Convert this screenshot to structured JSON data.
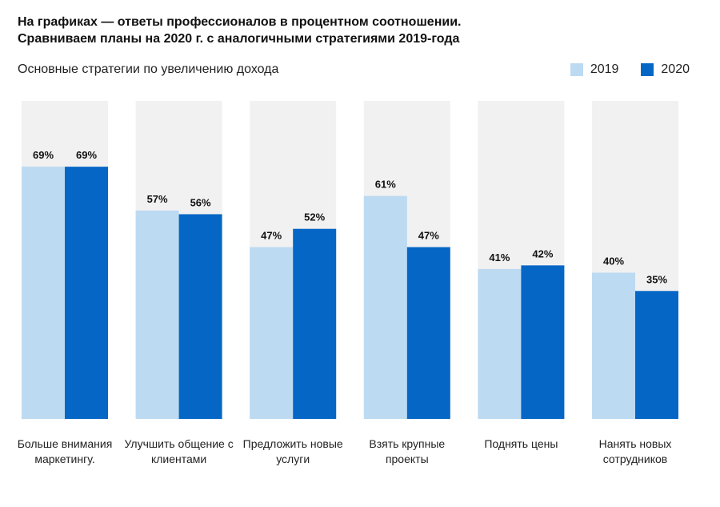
{
  "heading": {
    "line1": "На графиках — ответы профессионалов в процентном соотношении.",
    "line2": "Сравниваем планы на 2020 г. с аналогичными стратегиями 2019-года"
  },
  "subtitle": "Основные стратегии по увеличению дохода",
  "colors": {
    "s2019": "#bcdaf2",
    "s2020": "#0566c6",
    "background_column": "#f1f1f1"
  },
  "chart_data": {
    "type": "bar",
    "categories": [
      "Больше внимания маркетингу.",
      "Улучшить общение с клиентами",
      "Предложить новые услуги",
      "Взять крупные проекты",
      "Поднять цены",
      "Нанять новых сотрудников"
    ],
    "series": [
      {
        "name": "2019",
        "values": [
          69,
          57,
          47,
          61,
          41,
          40
        ],
        "labels": [
          "69%",
          "57%",
          "47%",
          "61%",
          "41%",
          "40%"
        ]
      },
      {
        "name": "2020",
        "values": [
          69,
          56,
          52,
          47,
          42,
          35
        ],
        "labels": [
          "69%",
          "56%",
          "52%",
          "47%",
          "42%",
          "35%"
        ]
      }
    ],
    "ylim": [
      0,
      87
    ],
    "legend_position": "top-right",
    "grid": false
  }
}
